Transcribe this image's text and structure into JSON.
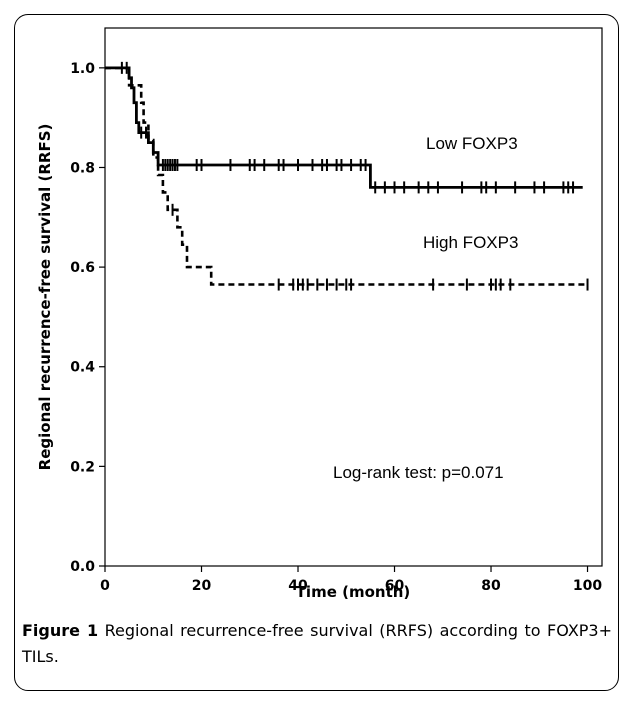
{
  "chart_data": {
    "type": "line",
    "subtype": "kaplan-meier",
    "title": "",
    "xlabel": "Time (month)",
    "ylabel": "Regional recurrence-free survival (RRFS)",
    "xlim": [
      0,
      103
    ],
    "ylim": [
      0.0,
      1.08
    ],
    "xticks": [
      0,
      20,
      40,
      60,
      80,
      100
    ],
    "yticks": [
      0.0,
      0.2,
      0.4,
      0.6,
      0.8,
      1.0
    ],
    "xtick_labels": [
      "0",
      "20",
      "40",
      "60",
      "80",
      "100"
    ],
    "ytick_labels": [
      "0.0",
      "0.2",
      "0.4",
      "0.6",
      "0.8",
      "1.0"
    ],
    "grid": false,
    "series": [
      {
        "name": "Low FOXP3",
        "style": "solid",
        "color": "#000000",
        "steps": [
          [
            0,
            1.0
          ],
          [
            5,
            1.0
          ],
          [
            5,
            0.98
          ],
          [
            5.5,
            0.98
          ],
          [
            5.5,
            0.96
          ],
          [
            6,
            0.96
          ],
          [
            6,
            0.93
          ],
          [
            6.5,
            0.93
          ],
          [
            6.5,
            0.89
          ],
          [
            7,
            0.89
          ],
          [
            7,
            0.87
          ],
          [
            9,
            0.87
          ],
          [
            9,
            0.85
          ],
          [
            10,
            0.85
          ],
          [
            10,
            0.83
          ],
          [
            11,
            0.83
          ],
          [
            11,
            0.805
          ],
          [
            55,
            0.805
          ],
          [
            55,
            0.76
          ],
          [
            99,
            0.76
          ]
        ],
        "censored": [
          3.5,
          4.5,
          7.5,
          8.5,
          12,
          12.5,
          13,
          13.5,
          14,
          14.5,
          15,
          19,
          20,
          26,
          30,
          31,
          33,
          36,
          37,
          40,
          43,
          45,
          46,
          48,
          49,
          51,
          53,
          54,
          56,
          58,
          60,
          62,
          65,
          67,
          69,
          74,
          78,
          79,
          81,
          85,
          89,
          91,
          95,
          96,
          97
        ]
      },
      {
        "name": "High FOXP3",
        "style": "dashed",
        "color": "#000000",
        "steps": [
          [
            0,
            1.0
          ],
          [
            5,
            1.0
          ],
          [
            5,
            0.965
          ],
          [
            7.5,
            0.965
          ],
          [
            7.5,
            0.93
          ],
          [
            8,
            0.93
          ],
          [
            8,
            0.89
          ],
          [
            9,
            0.89
          ],
          [
            9,
            0.855
          ],
          [
            10,
            0.855
          ],
          [
            10,
            0.82
          ],
          [
            11,
            0.82
          ],
          [
            11,
            0.785
          ],
          [
            12,
            0.785
          ],
          [
            12,
            0.75
          ],
          [
            13,
            0.75
          ],
          [
            13,
            0.715
          ],
          [
            15,
            0.715
          ],
          [
            15,
            0.68
          ],
          [
            16,
            0.68
          ],
          [
            16,
            0.645
          ],
          [
            17,
            0.645
          ],
          [
            17,
            0.6
          ],
          [
            22,
            0.6
          ],
          [
            22,
            0.565
          ],
          [
            100,
            0.565
          ]
        ],
        "censored": [
          14,
          36,
          39,
          40,
          41,
          42,
          44,
          46,
          48,
          50,
          51,
          68,
          75,
          80,
          81,
          82,
          84,
          100
        ]
      }
    ],
    "annotations": {
      "low_label": "Low FOXP3",
      "high_label": "High FOXP3",
      "test_label": "Log-rank test: p=0.071"
    }
  },
  "caption": {
    "label": "Figure 1",
    "text": " Regional recurrence-free survival (RRFS) according to FOXP3+ TILs."
  }
}
